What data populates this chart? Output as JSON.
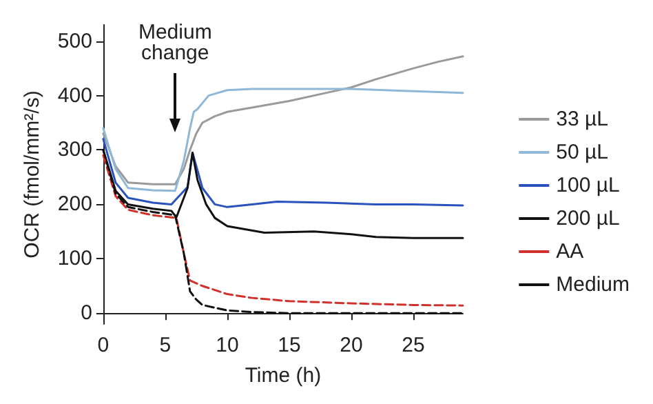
{
  "chart_data": {
    "type": "line",
    "xlabel": "Time (h)",
    "ylabel": "OCR (fmol/mm²/s)",
    "xlim": [
      0,
      29
    ],
    "xticks": [
      0,
      5,
      10,
      15,
      20,
      25
    ],
    "ylim": [
      -20,
      530
    ],
    "yticks": [
      0,
      100,
      200,
      300,
      400,
      500
    ],
    "grid": false,
    "legend": "right",
    "marker": "none",
    "annotations": [
      {
        "text": "Medium change",
        "x": 5.8
      }
    ],
    "series": [
      {
        "name": "33 µL",
        "color": "#9a9a9a",
        "line_style": "solid",
        "x": [
          0,
          1,
          2,
          4,
          5.8,
          6.5,
          7,
          7.5,
          8,
          9,
          10,
          12,
          15,
          18,
          20,
          22,
          25,
          27,
          29
        ],
        "values": [
          330,
          270,
          240,
          237,
          237,
          265,
          300,
          330,
          350,
          362,
          370,
          378,
          390,
          405,
          415,
          430,
          450,
          462,
          472
        ]
      },
      {
        "name": "50 µL",
        "color": "#8fb8d8",
        "line_style": "solid",
        "x": [
          0,
          1,
          2,
          4,
          5.8,
          6.5,
          7,
          7.3,
          7.6,
          8.5,
          10,
          12,
          15,
          20,
          25,
          29
        ],
        "values": [
          340,
          265,
          230,
          226,
          225,
          280,
          340,
          370,
          375,
          400,
          410,
          412,
          412,
          412,
          408,
          405
        ]
      },
      {
        "name": "100 µL",
        "color": "#2a52be",
        "line_style": "solid",
        "x": [
          0,
          1,
          2,
          4,
          5.5,
          6.8,
          7.2,
          8,
          9,
          10,
          12,
          14,
          18,
          22,
          25,
          29
        ],
        "values": [
          320,
          240,
          212,
          203,
          200,
          232,
          295,
          230,
          200,
          195,
          200,
          205,
          203,
          200,
          200,
          198
        ]
      },
      {
        "name": "200 µL",
        "color": "#111111",
        "line_style": "solid",
        "x": [
          0,
          1,
          2,
          4,
          5.5,
          5.9,
          6.8,
          7.2,
          7.6,
          8.3,
          9,
          10,
          13,
          17,
          20,
          22,
          25,
          29
        ],
        "values": [
          300,
          225,
          200,
          192,
          188,
          176,
          230,
          295,
          245,
          200,
          175,
          160,
          148,
          150,
          145,
          140,
          138,
          138
        ]
      },
      {
        "name": "AA",
        "color": "#d0312d",
        "line_style": "dashed",
        "x": [
          0,
          1,
          2,
          4,
          5.9,
          6.5,
          7,
          8,
          10,
          12,
          15,
          20,
          25,
          29
        ],
        "values": [
          290,
          215,
          190,
          180,
          175,
          110,
          60,
          50,
          35,
          28,
          22,
          18,
          15,
          14
        ]
      },
      {
        "name": "Medium",
        "color": "#111111",
        "line_style": "dashed",
        "x": [
          0,
          1,
          2,
          4,
          5.8,
          6.5,
          7,
          7.5,
          8,
          10,
          12,
          15,
          20,
          25,
          29
        ],
        "values": [
          300,
          220,
          195,
          186,
          180,
          110,
          40,
          25,
          15,
          5,
          2,
          0,
          0,
          0,
          0
        ]
      }
    ]
  }
}
